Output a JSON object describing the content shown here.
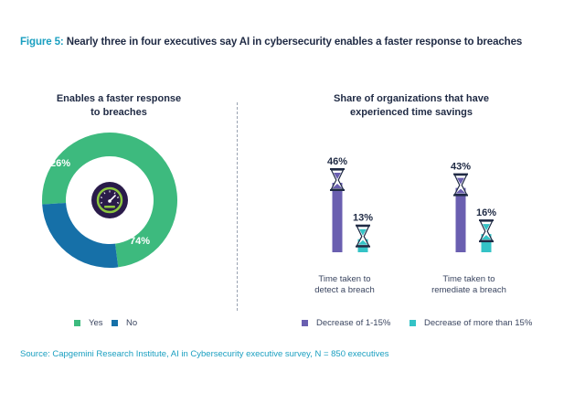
{
  "figure": {
    "number": "Figure 5:",
    "title": "Nearly three in four executives say AI in cybersecurity enables a faster response to breaches"
  },
  "source": "Source: Capgemini Research Institute, AI in Cybersecurity executive survey, N = 850 executives",
  "colors": {
    "yes": "#3dba7e",
    "no": "#1670a8",
    "purple": "#6a5fb0",
    "teal": "#34c3c6",
    "accent": "#1a9fc0",
    "text": "#1f2a44",
    "gauge_bg": "#2a1b4a",
    "gauge_ring": "#8cc63f"
  },
  "icons": {
    "center": "speedometer-icon",
    "bar_top": "hourglass-icon"
  },
  "chart_data": [
    {
      "type": "pie",
      "title_line1": "Enables a faster response",
      "title_line2": "to breaches",
      "slices": [
        {
          "name": "Yes",
          "value": 74,
          "label": "74%"
        },
        {
          "name": "No",
          "value": 26,
          "label": "26%"
        }
      ],
      "legend_placement": "bottom"
    },
    {
      "type": "bar",
      "title_line1": "Share of organizations that have",
      "title_line2": "experienced time savings",
      "categories": [
        {
          "line1": "Time taken to",
          "line2": "detect a breach"
        },
        {
          "line1": "Time taken to",
          "line2": "remediate a breach"
        }
      ],
      "series": [
        {
          "name": "Decrease of 1-15%",
          "values": [
            46,
            43
          ],
          "labels": [
            "46%",
            "43%"
          ]
        },
        {
          "name": "Decrease of more than 15%",
          "values": [
            13,
            16
          ],
          "labels": [
            "13%",
            "16%"
          ]
        }
      ],
      "ylim": [
        0,
        50
      ],
      "legend_placement": "bottom",
      "grid": false
    }
  ]
}
